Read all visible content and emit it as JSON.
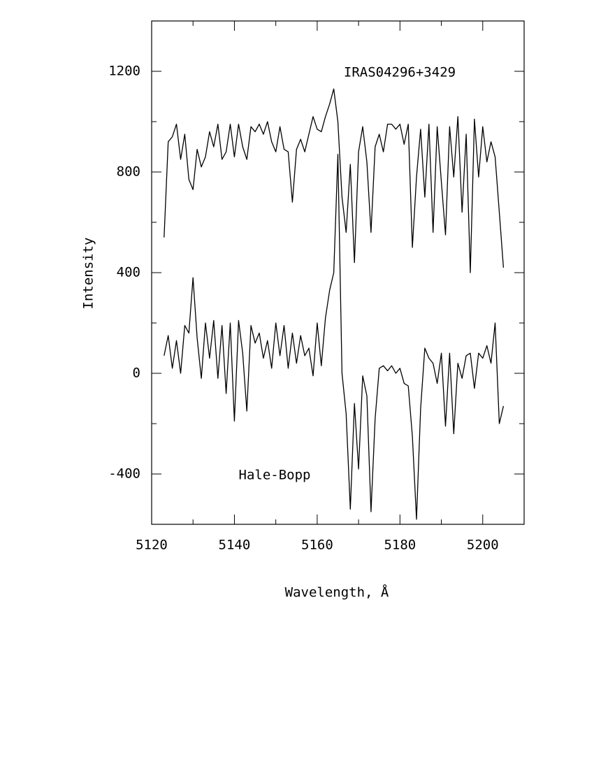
{
  "chart_data": {
    "type": "line",
    "xlabel": "Wavelength, Å",
    "ylabel": "Intensity",
    "annotations": [
      "IRAS04296+3429",
      "Hale-Bopp"
    ],
    "x": [
      5123,
      5124,
      5125,
      5126,
      5127,
      5128,
      5129,
      5130,
      5131,
      5132,
      5133,
      5134,
      5135,
      5136,
      5137,
      5138,
      5139,
      5140,
      5141,
      5142,
      5143,
      5144,
      5145,
      5146,
      5147,
      5148,
      5149,
      5150,
      5151,
      5152,
      5153,
      5154,
      5155,
      5156,
      5157,
      5158,
      5159,
      5160,
      5161,
      5162,
      5163,
      5164,
      5165,
      5166,
      5167,
      5168,
      5169,
      5170,
      5171,
      5172,
      5173,
      5174,
      5175,
      5176,
      5177,
      5178,
      5179,
      5180,
      5181,
      5182,
      5183,
      5184,
      5185,
      5186,
      5187,
      5188,
      5189,
      5190,
      5191,
      5192,
      5193,
      5194,
      5195,
      5196,
      5197,
      5198,
      5199,
      5200,
      5201,
      5202,
      5203,
      5204,
      5205
    ],
    "series": [
      {
        "color": "#000000",
        "values": [
          540,
          920,
          940,
          990,
          850,
          950,
          770,
          730,
          890,
          820,
          860,
          960,
          900,
          990,
          850,
          880,
          990,
          860,
          990,
          900,
          850,
          980,
          960,
          990,
          950,
          1000,
          920,
          880,
          980,
          890,
          880,
          680,
          890,
          930,
          880,
          950,
          1020,
          970,
          960,
          1020,
          1070,
          1130,
          1000,
          700,
          560,
          830,
          440,
          880,
          980,
          840,
          560,
          900,
          950,
          880,
          990,
          990,
          970,
          990,
          910,
          990,
          500,
          780,
          970,
          700,
          990,
          560,
          980,
          760,
          550,
          980,
          780,
          1020,
          640,
          950,
          400,
          1010,
          780,
          980,
          840,
          920,
          860,
          640,
          420
        ]
      },
      {
        "color": "#000000",
        "values": [
          70,
          150,
          20,
          130,
          0,
          190,
          160,
          380,
          140,
          -20,
          200,
          60,
          210,
          -20,
          190,
          -80,
          200,
          -190,
          210,
          80,
          -150,
          190,
          120,
          160,
          60,
          130,
          20,
          200,
          70,
          190,
          20,
          160,
          40,
          150,
          70,
          100,
          -10,
          200,
          30,
          220,
          330,
          400,
          870,
          0,
          -160,
          -540,
          -120,
          -380,
          -10,
          -90,
          -550,
          -180,
          20,
          30,
          10,
          30,
          0,
          20,
          -40,
          -50,
          -250,
          -580,
          -140,
          100,
          60,
          40,
          -40,
          80,
          -210,
          80,
          -240,
          40,
          -20,
          70,
          80,
          -60,
          80,
          60,
          110,
          40,
          200,
          -200,
          -130
        ]
      }
    ],
    "xlim": [
      5120,
      5210
    ],
    "ylim": [
      -600,
      1400
    ],
    "xticks": [
      5120,
      5140,
      5160,
      5180,
      5200
    ],
    "xminorticks": [
      5130,
      5150,
      5170,
      5190,
      5210
    ],
    "yticks": [
      -400,
      0,
      400,
      800,
      1200
    ],
    "yminorticks": [
      -600,
      -200,
      200,
      600,
      1000,
      1400
    ],
    "grid": false
  }
}
